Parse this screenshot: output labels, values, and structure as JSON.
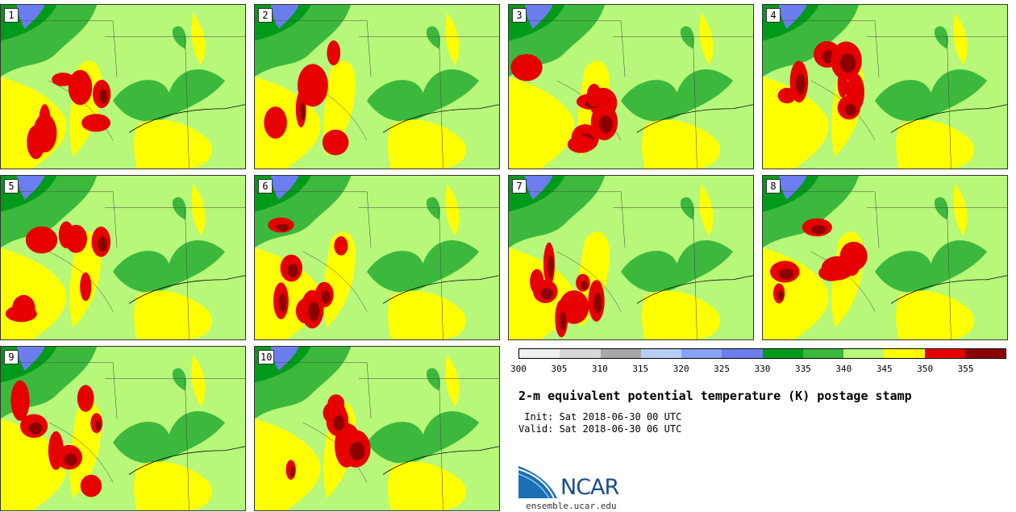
{
  "panels": [
    {
      "label": "1"
    },
    {
      "label": "2"
    },
    {
      "label": "3"
    },
    {
      "label": "4"
    },
    {
      "label": "5"
    },
    {
      "label": "6"
    },
    {
      "label": "7"
    },
    {
      "label": "8"
    },
    {
      "label": "9"
    },
    {
      "label": "10"
    }
  ],
  "colorbar": {
    "colors": [
      "#f0f0f0",
      "#d8d8d8",
      "#a8a8a8",
      "#b7cff7",
      "#86a2f5",
      "#6c7df0",
      "#009a1a",
      "#3cb93c",
      "#b7f77a",
      "#ffff00",
      "#e60000",
      "#8c0000"
    ],
    "labels": [
      "300",
      "305",
      "310",
      "315",
      "320",
      "325",
      "330",
      "335",
      "340",
      "345",
      "350",
      "355"
    ]
  },
  "title": "2-m equivalent potential temperature (K) postage stamp",
  "init_line": " Init: Sat 2018-06-30 00 UTC",
  "valid_line": "Valid: Sat 2018-06-30 06 UTC",
  "logo": {
    "text": "NCAR",
    "site": "ensemble.ucar.edu"
  }
}
